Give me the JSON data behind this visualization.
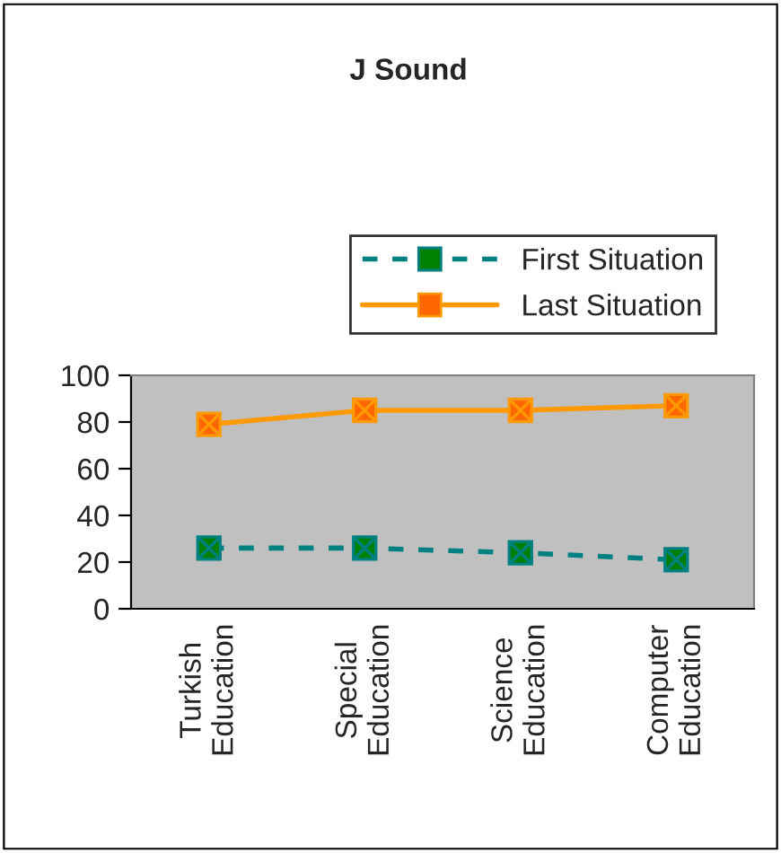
{
  "chart_data": {
    "type": "line",
    "title": "J Sound",
    "categories": [
      "Turkish Education",
      "Special Education",
      "Science Education",
      "Computer Education"
    ],
    "series": [
      {
        "name": "First Situation",
        "color": "#008080",
        "values": [
          26,
          26,
          24,
          21
        ],
        "line_style": "dashed"
      },
      {
        "name": "Last Situation",
        "color": "#ff9900",
        "values": [
          79,
          85,
          85,
          87
        ],
        "line_style": "solid"
      }
    ],
    "ylim": [
      0,
      100
    ],
    "yticks": [
      0,
      20,
      40,
      60,
      80,
      100
    ],
    "grid": false,
    "legend": "top",
    "marker": "square"
  }
}
